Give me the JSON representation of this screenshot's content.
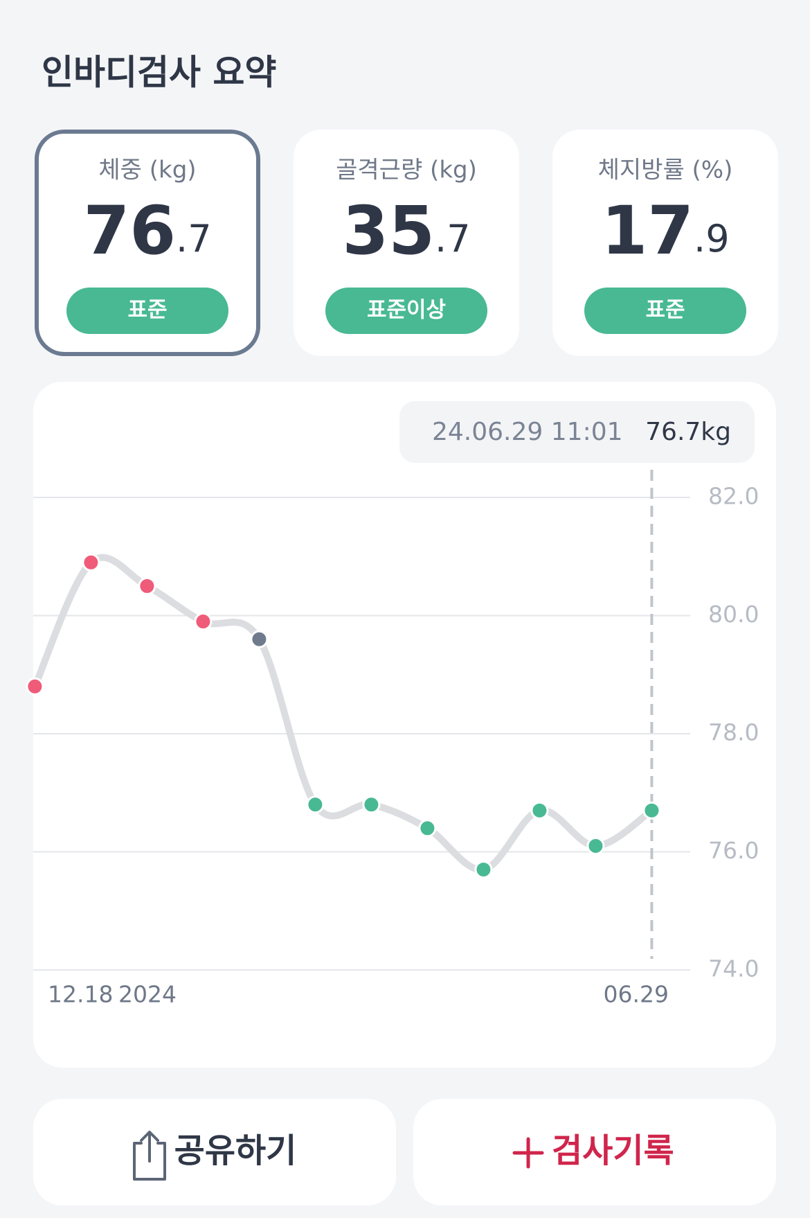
{
  "header": {
    "title": "인바디검사 요약"
  },
  "cards": [
    {
      "label": "체중 (kg)",
      "value_int": "76",
      "value_dec": ".7",
      "badge": "표준",
      "selected": true
    },
    {
      "label": "골격근량 (kg)",
      "value_int": "35",
      "value_dec": ".7",
      "badge": "표준이상",
      "selected": false
    },
    {
      "label": "체지방률 (%)",
      "value_int": "17",
      "value_dec": ".9",
      "badge": "표준",
      "selected": false
    }
  ],
  "chart_data": {
    "type": "line",
    "categories": [
      "12.18",
      null,
      null,
      null,
      null,
      null,
      null,
      null,
      null,
      null,
      null,
      "06.29"
    ],
    "year_label": "2024",
    "series": [
      {
        "name": "체중",
        "color": "#dcdde1",
        "values": [
          78.8,
          80.9,
          80.5,
          79.9,
          79.6,
          76.8,
          76.8,
          76.4,
          75.7,
          76.7,
          76.1,
          76.7
        ],
        "point_colors": [
          "#ef5b79",
          "#ef5b79",
          "#ef5b79",
          "#ef5b79",
          "#6f7b8d",
          "#48b993",
          "#48b993",
          "#48b993",
          "#48b993",
          "#48b993",
          "#48b993",
          "#48b993"
        ]
      }
    ],
    "ylim": [
      74,
      82
    ],
    "yticks": [
      {
        "value": 74,
        "label": "74.0"
      },
      {
        "value": 76,
        "label": "76.0"
      },
      {
        "value": 78,
        "label": "78.0"
      },
      {
        "value": 80,
        "label": "80.0"
      },
      {
        "value": 82,
        "label": "82.0"
      }
    ],
    "grid": true,
    "tooltip": {
      "date": "24.06.29 11:01",
      "value": "76.7kg"
    }
  },
  "buttons": {
    "share": "공유하기",
    "record": "검사기록"
  }
}
